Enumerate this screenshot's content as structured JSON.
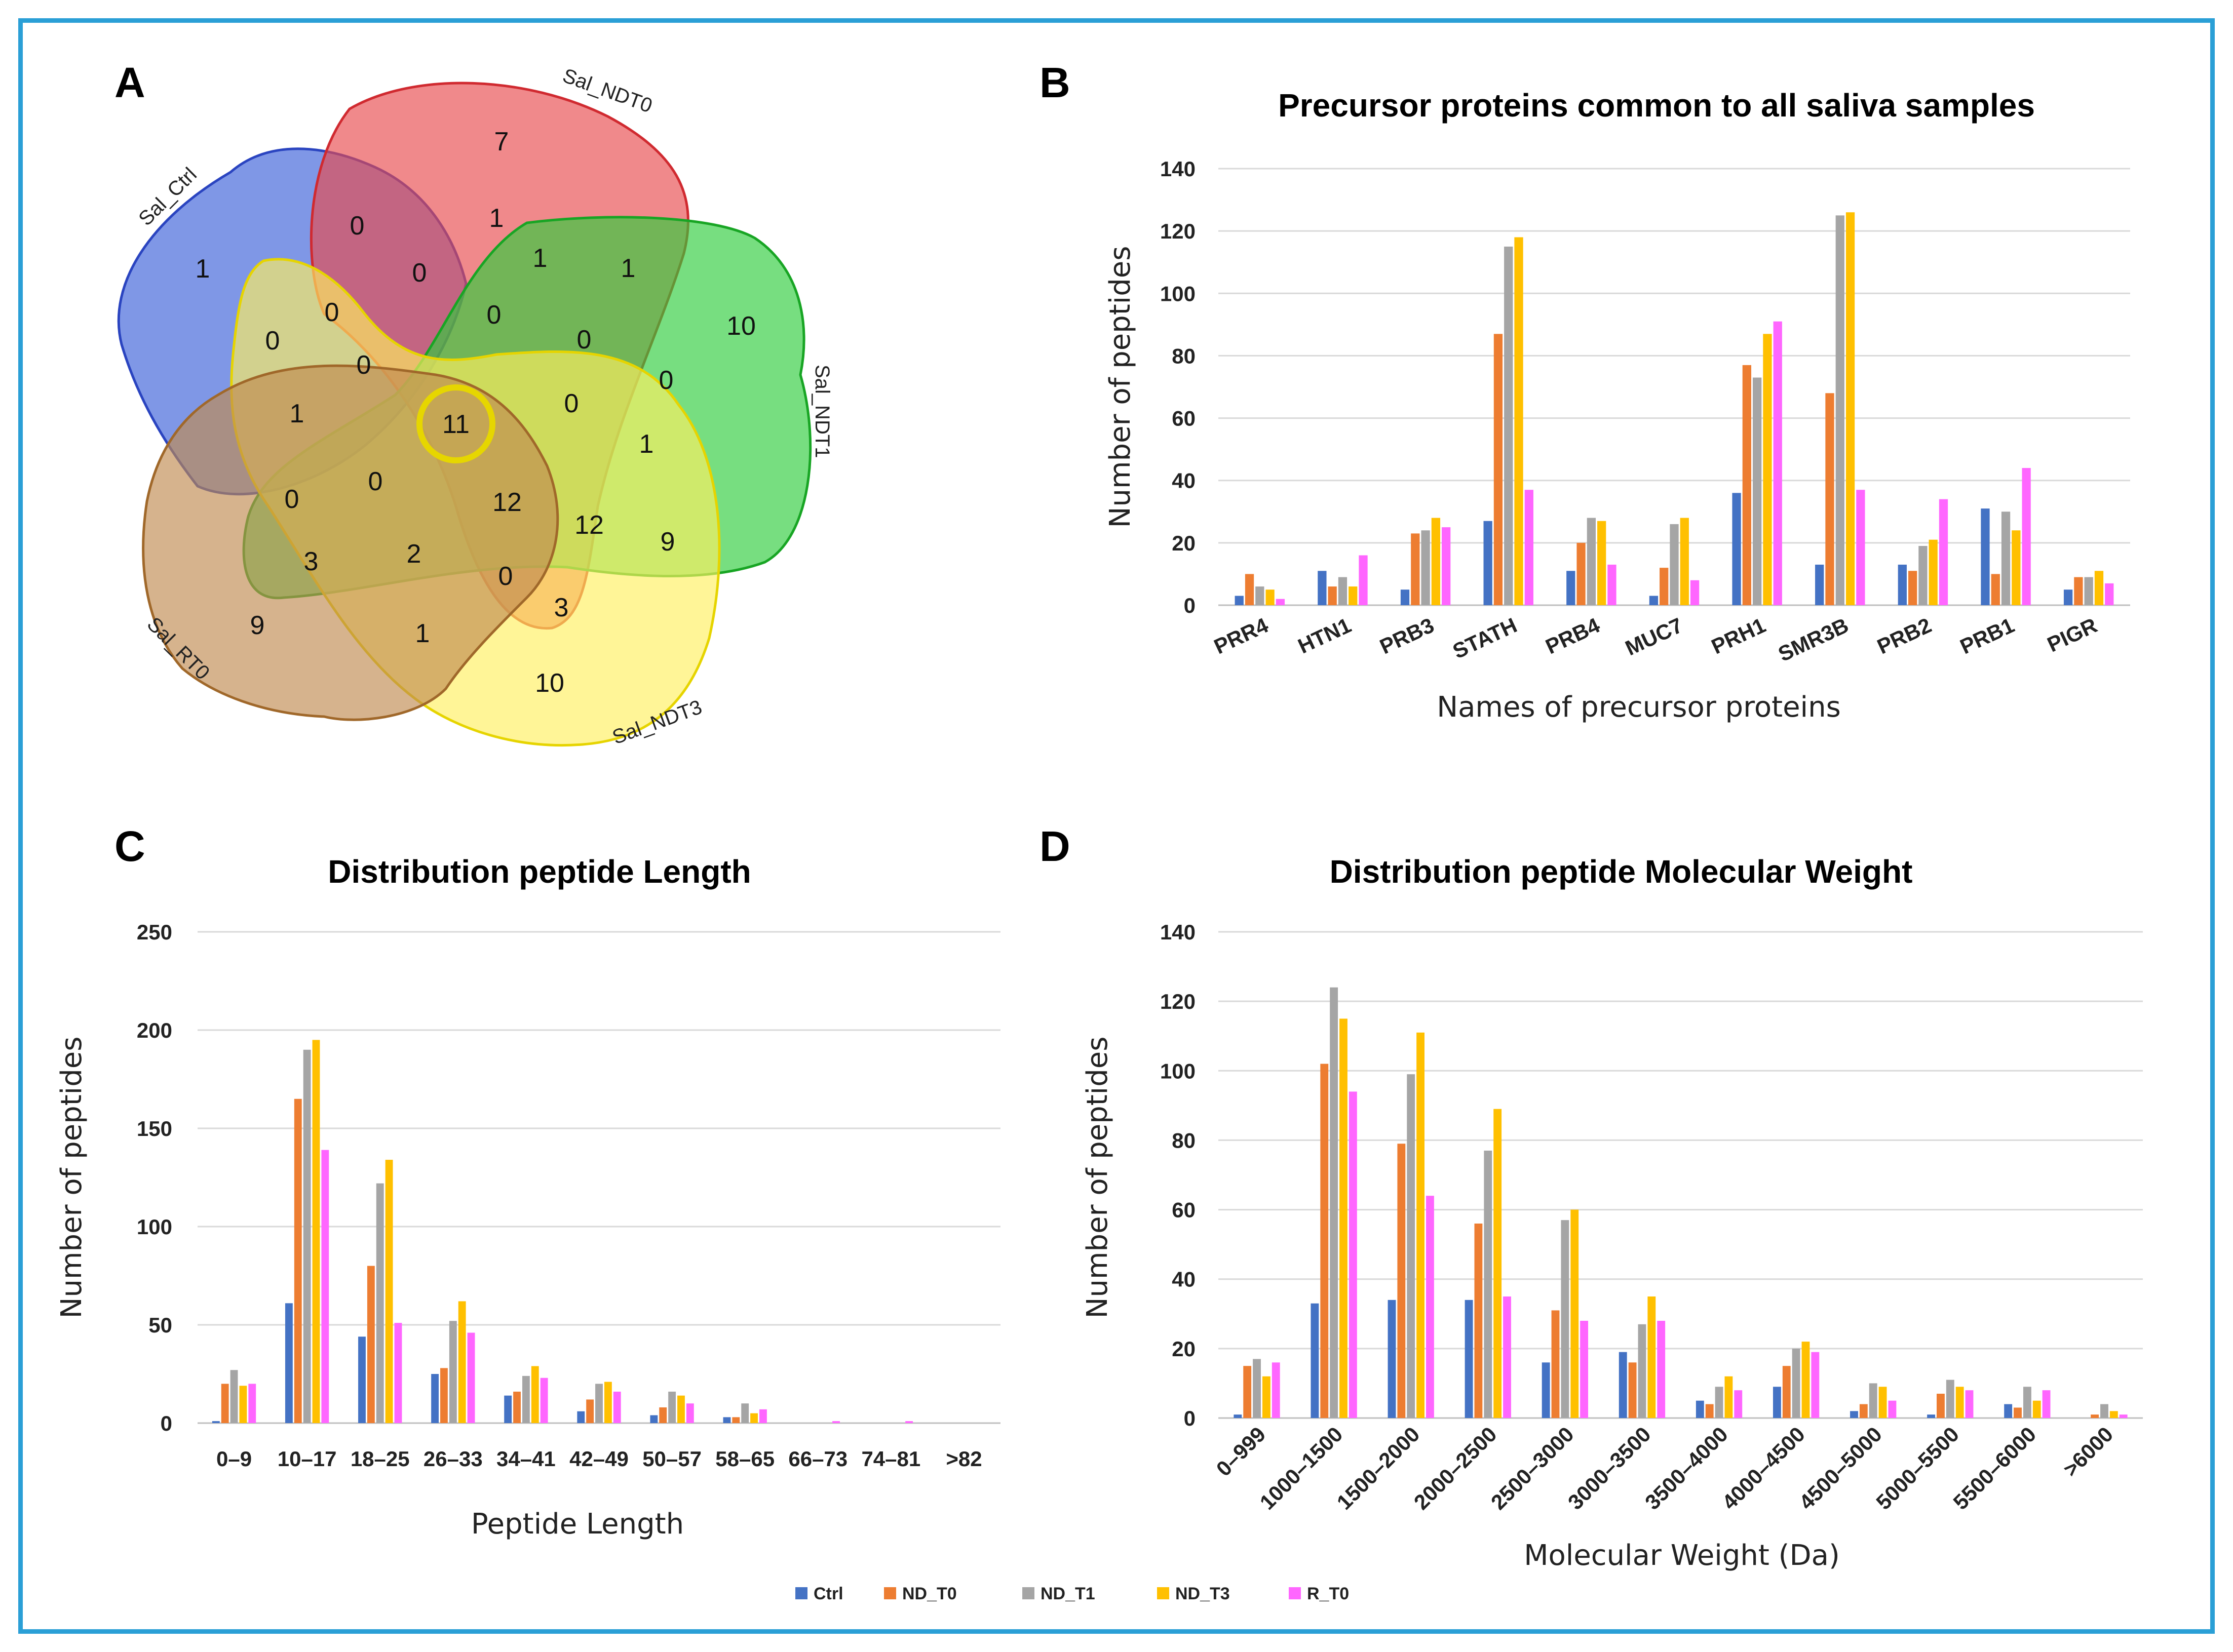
{
  "panels": {
    "a": "A",
    "b": "B",
    "c": "C",
    "d": "D"
  },
  "colors": {
    "Ctrl": "#4472c4",
    "ND_T0": "#ed7d31",
    "ND_T1": "#a5a5a5",
    "ND_T3": "#ffc000",
    "R_T0": "#ff66ff",
    "frame": "#2a9fd6",
    "venn_ctrl": "#3a5fd9",
    "venn_ndt0": "#e8494d",
    "venn_ndt1": "#2ecc3c",
    "venn_ndt3": "#fff060",
    "venn_rt0": "#c08a50",
    "highlight": "#e6d600"
  },
  "venn": {
    "sets": [
      "Sal_Ctrl",
      "Sal_NDT0",
      "Sal_NDT1",
      "Sal_NDT3",
      "Sal_RT0"
    ],
    "values": [
      "7",
      "1",
      "0",
      "1",
      "1",
      "0",
      "0",
      "0",
      "10",
      "0",
      "1",
      "0",
      "0",
      "0",
      "11",
      "0",
      "1",
      "1",
      "0",
      "12",
      "12",
      "9",
      "0",
      "3",
      "2",
      "0",
      "3",
      "9",
      "1",
      "10"
    ],
    "highlighted_value": "11"
  },
  "chart_data": [
    {
      "type": "bar",
      "title": "Precursor proteins common to all saliva samples",
      "xlabel": "Names of precursor proteins",
      "ylabel": "Number of peptides",
      "ylim": [
        0,
        140
      ],
      "yticks": [
        "0",
        "20",
        "40",
        "60",
        "80",
        "100",
        "120",
        "140"
      ],
      "categories": [
        "PRR4",
        "HTN1",
        "PRB3",
        "STATH",
        "PRB4",
        "MUC7",
        "PRH1",
        "SMR3B",
        "PRB2",
        "PRB1",
        "PIGR"
      ],
      "series": [
        {
          "name": "Ctrl",
          "values": [
            3,
            11,
            5,
            27,
            11,
            3,
            36,
            13,
            13,
            31,
            5
          ]
        },
        {
          "name": "ND_T0",
          "values": [
            10,
            6,
            23,
            87,
            20,
            12,
            77,
            68,
            11,
            10,
            9
          ]
        },
        {
          "name": "ND_T1",
          "values": [
            6,
            9,
            24,
            115,
            28,
            26,
            73,
            125,
            19,
            30,
            9
          ]
        },
        {
          "name": "ND_T3",
          "values": [
            5,
            6,
            28,
            118,
            27,
            28,
            87,
            126,
            21,
            24,
            11
          ]
        },
        {
          "name": "R_T0",
          "values": [
            2,
            16,
            25,
            37,
            13,
            8,
            91,
            37,
            34,
            44,
            7
          ]
        }
      ]
    },
    {
      "type": "bar",
      "title": "Distribution peptide Length",
      "xlabel": "Peptide Length",
      "ylabel": "Number of peptides",
      "ylim": [
        0,
        250
      ],
      "yticks": [
        "0",
        "50",
        "100",
        "150",
        "200",
        "250"
      ],
      "categories": [
        "0–9",
        "10–17",
        "18–25",
        "26–33",
        "34–41",
        "42–49",
        "50–57",
        "58–65",
        "66–73",
        "74–81",
        ">82"
      ],
      "series": [
        {
          "name": "Ctrl",
          "values": [
            1,
            61,
            44,
            25,
            14,
            6,
            4,
            3,
            0,
            0,
            0
          ]
        },
        {
          "name": "ND_T0",
          "values": [
            20,
            165,
            80,
            28,
            16,
            12,
            8,
            3,
            0,
            0,
            0
          ]
        },
        {
          "name": "ND_T1",
          "values": [
            27,
            190,
            122,
            52,
            24,
            20,
            16,
            10,
            0,
            0,
            0
          ]
        },
        {
          "name": "ND_T3",
          "values": [
            19,
            195,
            134,
            62,
            29,
            21,
            14,
            5,
            0,
            0,
            0
          ]
        },
        {
          "name": "R_T0",
          "values": [
            20,
            139,
            51,
            46,
            23,
            16,
            10,
            7,
            1,
            1,
            0
          ]
        }
      ]
    },
    {
      "type": "bar",
      "title": "Distribution peptide Molecular Weight",
      "xlabel": "Molecular Weight (Da)",
      "ylabel": "Number of peptides",
      "ylim": [
        0,
        140
      ],
      "yticks": [
        "0",
        "20",
        "40",
        "60",
        "80",
        "100",
        "120",
        "140"
      ],
      "categories": [
        "0–999",
        "1000–1500",
        "1500–2000",
        "2000–2500",
        "2500–3000",
        "3000–3500",
        "3500–4000",
        "4000–4500",
        "4500–5000",
        "5000–5500",
        "5500–6000",
        ">6000"
      ],
      "series": [
        {
          "name": "Ctrl",
          "values": [
            1,
            33,
            34,
            34,
            16,
            19,
            5,
            9,
            2,
            1,
            4,
            0
          ]
        },
        {
          "name": "ND_T0",
          "values": [
            15,
            102,
            79,
            56,
            31,
            16,
            4,
            15,
            4,
            7,
            3,
            1
          ]
        },
        {
          "name": "ND_T1",
          "values": [
            17,
            124,
            99,
            77,
            57,
            27,
            9,
            20,
            10,
            11,
            9,
            4
          ]
        },
        {
          "name": "ND_T3",
          "values": [
            12,
            115,
            111,
            89,
            60,
            35,
            12,
            22,
            9,
            9,
            5,
            2
          ]
        },
        {
          "name": "R_T0",
          "values": [
            16,
            94,
            64,
            35,
            28,
            28,
            8,
            19,
            5,
            8,
            8,
            1
          ]
        }
      ]
    }
  ],
  "legend": [
    "Ctrl",
    "ND_T0",
    "ND_T1",
    "ND_T3",
    "R_T0"
  ]
}
